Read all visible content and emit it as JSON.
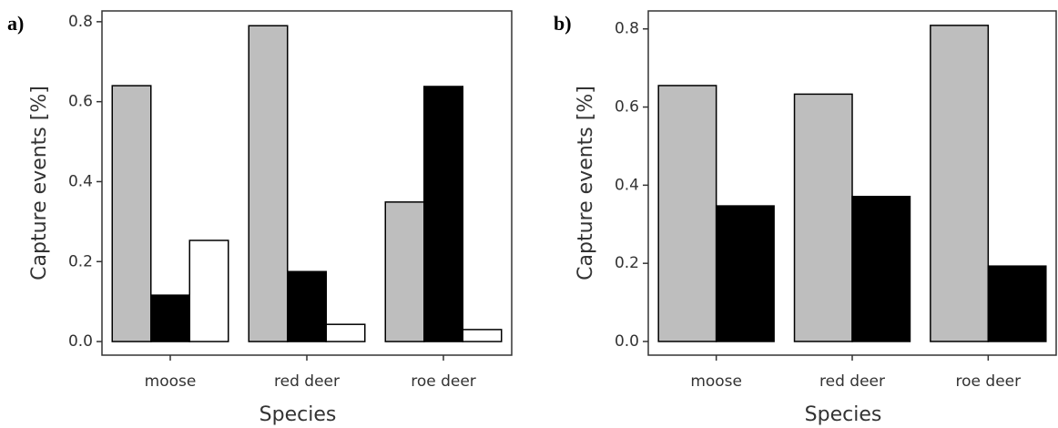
{
  "chart_data": [
    {
      "type": "bar",
      "panel_label": "a)",
      "xlabel": "Species",
      "ylabel": "Capture events [%]",
      "categories": [
        "moose",
        "red deer",
        "roe deer"
      ],
      "series": [
        {
          "color": "#bebebe",
          "values": [
            0.64,
            0.79,
            0.349
          ]
        },
        {
          "color": "#000000",
          "values": [
            0.116,
            0.175,
            0.638
          ]
        },
        {
          "color": "#ffffff",
          "values": [
            0.253,
            0.043,
            0.03
          ]
        }
      ],
      "ylim": [
        -0.034,
        0.827
      ],
      "yticks": [
        {
          "value": 0,
          "label": "0.0"
        },
        0.2,
        0.4,
        0.6,
        0.8
      ]
    },
    {
      "type": "bar",
      "panel_label": "b)",
      "xlabel": "Species",
      "ylabel": "Capture events [%]",
      "categories": [
        "moose",
        "red deer",
        "roe deer"
      ],
      "series": [
        {
          "color": "#bebebe",
          "values": [
            0.655,
            0.633,
            0.809
          ]
        },
        {
          "color": "#000000",
          "values": [
            0.347,
            0.371,
            0.193
          ]
        }
      ],
      "ylim": [
        -0.035,
        0.846
      ],
      "yticks": [
        {
          "value": 0,
          "label": "0.0"
        },
        0.2,
        0.4,
        0.6,
        0.8
      ]
    }
  ]
}
